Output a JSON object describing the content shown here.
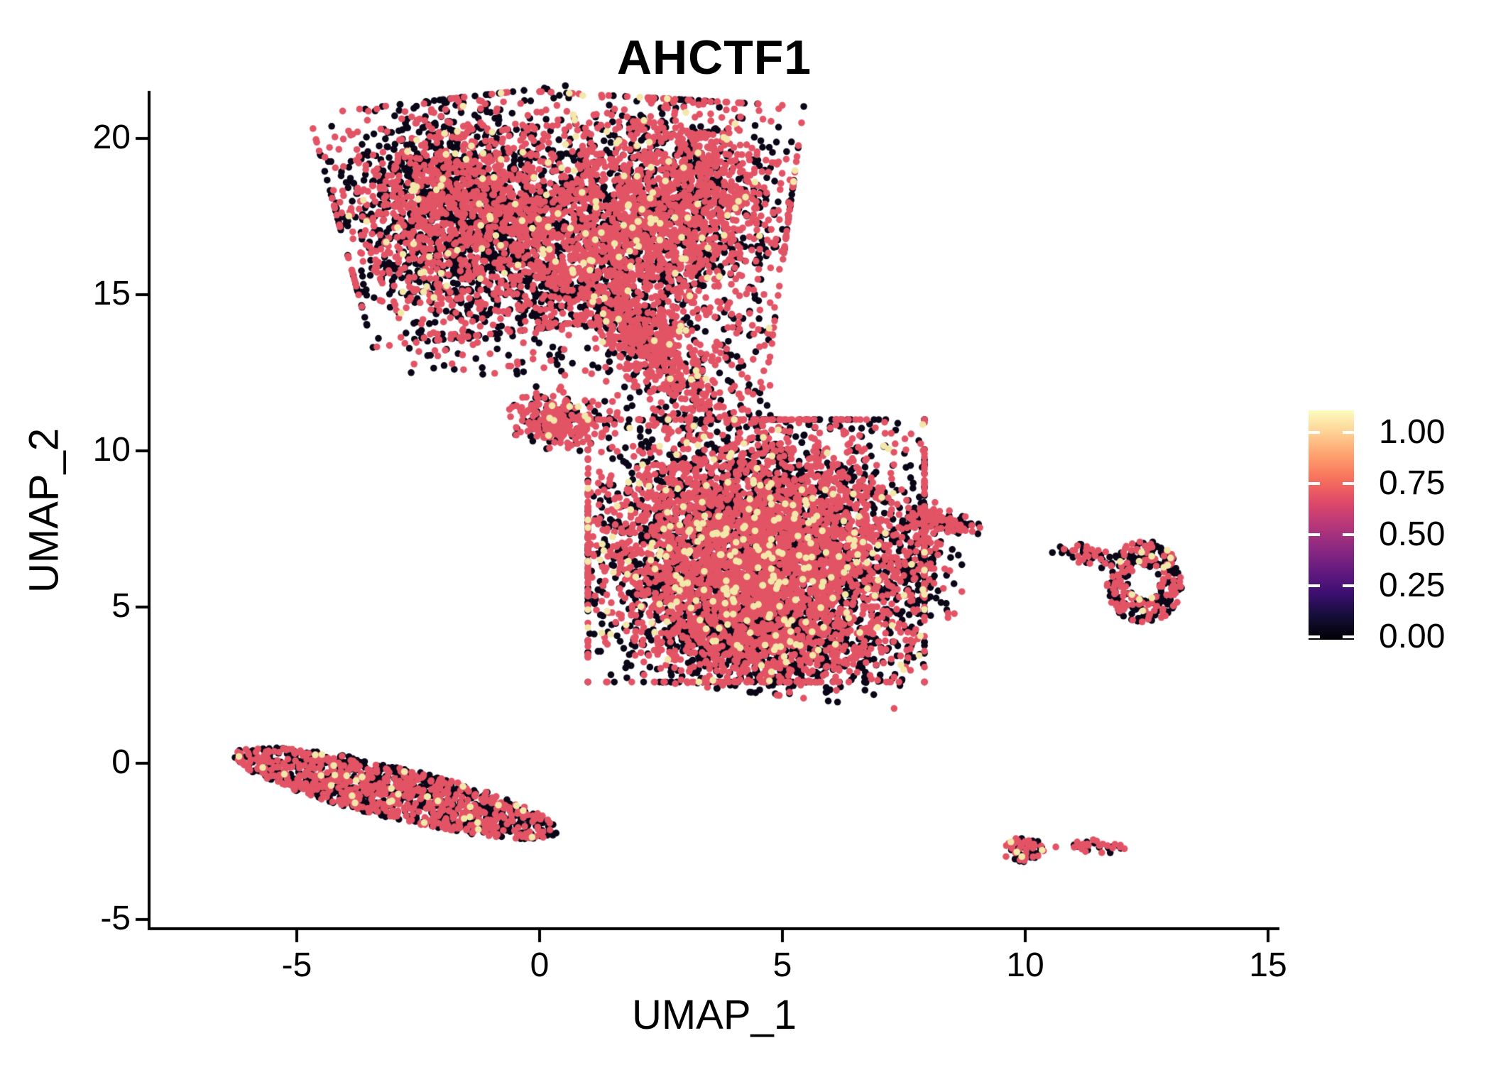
{
  "title": "AHCTF1",
  "axes": {
    "x_label": "UMAP_1",
    "y_label": "UMAP_2",
    "x_ticks": [
      -5,
      0,
      5,
      10,
      15
    ],
    "y_ticks": [
      -5,
      0,
      5,
      10,
      15,
      20
    ]
  },
  "colorbar": {
    "tick_labels": [
      "1.00",
      "0.75",
      "0.50",
      "0.25",
      "0.00"
    ],
    "tick_values": [
      1.0,
      0.75,
      0.5,
      0.25,
      0.0
    ],
    "colormap_name": "magma",
    "gradient_stops": [
      "#000004",
      "#140e36",
      "#3b0f70",
      "#641a80",
      "#8c2981",
      "#b73779",
      "#de4968",
      "#f7705c",
      "#fe9f6d",
      "#fecf92",
      "#fcfdbf"
    ]
  },
  "chart_data": {
    "type": "scatter",
    "title": "AHCTF1",
    "xlabel": "UMAP_1",
    "ylabel": "UMAP_2",
    "xlim": [
      -8.1,
      15.5
    ],
    "ylim": [
      -5.3,
      21.5
    ],
    "x_ticks": [
      -5,
      0,
      5,
      10,
      15
    ],
    "y_ticks": [
      -5,
      0,
      5,
      10,
      15,
      20
    ],
    "grid": false,
    "legend_position": "right",
    "point_radius_px": 4.8,
    "point_colors": {
      "black": "#0B0718",
      "red": "#E25465",
      "cream": "#F3E7AA"
    },
    "expression_levels": {
      "black": 0.0,
      "red": 0.7,
      "cream": 1.0
    },
    "clusters": [
      {
        "name": "top-left-lobe",
        "dist": "gauss",
        "cx": -1.45,
        "cy": 17.5,
        "rx": 2.55,
        "ry": 3.6,
        "angle": 10,
        "n": 2600,
        "mix": {
          "black": 0.52,
          "red": 0.45,
          "cream": 0.03
        }
      },
      {
        "name": "top-right-lobe",
        "dist": "gauss",
        "cx": 2.4,
        "cy": 17.6,
        "rx": 2.6,
        "ry": 3.5,
        "angle": -5,
        "n": 2600,
        "mix": {
          "red": 0.6,
          "black": 0.37,
          "cream": 0.03
        }
      },
      {
        "name": "neck-streak",
        "dist": "gauss",
        "cx": 2.26,
        "cy": 13.4,
        "rx": 2.6,
        "ry": 0.85,
        "angle": -62,
        "n": 620,
        "mix": {
          "red": 0.66,
          "black": 0.32,
          "cream": 0.02
        }
      },
      {
        "name": "bridge-sparse-left",
        "dist": "rect",
        "x0": -2.9,
        "x1": 2.0,
        "y0": 12.4,
        "y1": 15.7,
        "n": 220,
        "mix": {
          "black": 0.55,
          "red": 0.45
        }
      },
      {
        "name": "bridge-sparse-right",
        "dist": "rect",
        "x0": 1.3,
        "x1": 4.8,
        "y0": 9.2,
        "y1": 14.7,
        "n": 260,
        "mix": {
          "black": 0.5,
          "red": 0.5
        }
      },
      {
        "name": "mini-blob",
        "dist": "gauss",
        "cx": 0.37,
        "cy": 11.0,
        "rx": 0.95,
        "ry": 0.85,
        "angle": -35,
        "n": 280,
        "mix": {
          "red": 0.72,
          "black": 0.26,
          "cream": 0.02
        }
      },
      {
        "name": "middle-main",
        "dist": "gauss",
        "cx": 4.46,
        "cy": 6.8,
        "rx": 3.3,
        "ry": 4.0,
        "angle": 0,
        "n": 5200,
        "mix": {
          "red": 0.55,
          "black": 0.4,
          "cream": 0.05
        }
      },
      {
        "name": "middle-bottom-edge",
        "dist": "gauss",
        "cx": 4.8,
        "cy": 3.9,
        "rx": 2.7,
        "ry": 1.6,
        "angle": -10,
        "n": 850,
        "mix": {
          "black": 0.62,
          "red": 0.36,
          "cream": 0.02
        }
      },
      {
        "name": "middle-right-tail",
        "dist": "gauss",
        "cx": 8.3,
        "cy": 7.75,
        "rx": 0.8,
        "ry": 0.28,
        "angle": -20,
        "n": 120,
        "mix": {
          "red": 0.5,
          "black": 0.48,
          "cream": 0.02
        }
      },
      {
        "name": "middle-right-edge",
        "dist": "gauss",
        "cx": 7.75,
        "cy": 6.25,
        "rx": 0.9,
        "ry": 2.0,
        "angle": 0,
        "n": 170,
        "mix": {
          "black": 0.6,
          "red": 0.4
        }
      },
      {
        "name": "bottom-left-strip",
        "dist": "disk",
        "cx": -2.96,
        "cy": -0.95,
        "rx": 3.55,
        "ry": 0.8,
        "angle": -21,
        "n": 1250,
        "mix": {
          "black": 0.5,
          "red": 0.48,
          "cream": 0.02
        }
      },
      {
        "name": "right-ring",
        "dist": "ring",
        "cx": 12.45,
        "cy": 5.8,
        "rx": 0.78,
        "ry": 1.32,
        "inner": 0.4,
        "angle": 0,
        "n": 280,
        "mix": {
          "black": 0.55,
          "red": 0.4,
          "cream": 0.05
        }
      },
      {
        "name": "right-ring-arm",
        "dist": "gauss",
        "cx": 11.35,
        "cy": 6.65,
        "rx": 0.75,
        "ry": 0.28,
        "angle": -20,
        "n": 48,
        "mix": {
          "black": 0.5,
          "red": 0.5
        }
      },
      {
        "name": "small-bottom-blob",
        "dist": "disk",
        "cx": 9.99,
        "cy": -2.77,
        "rx": 0.46,
        "ry": 0.4,
        "angle": 0,
        "n": 55,
        "mix": {
          "red": 0.55,
          "black": 0.4,
          "cream": 0.05
        }
      },
      {
        "name": "small-bottom-strip",
        "dist": "disk",
        "cx": 11.5,
        "cy": -2.68,
        "rx": 0.55,
        "ry": 0.23,
        "angle": -8,
        "n": 34,
        "mix": {
          "black": 0.52,
          "red": 0.48
        }
      }
    ],
    "outliers": [
      {
        "x": 10.63,
        "y": -2.68,
        "c": "red"
      },
      {
        "x": 6.7,
        "y": 2.34,
        "c": "black"
      },
      {
        "x": 6.9,
        "y": 3.84,
        "c": "black"
      }
    ]
  }
}
